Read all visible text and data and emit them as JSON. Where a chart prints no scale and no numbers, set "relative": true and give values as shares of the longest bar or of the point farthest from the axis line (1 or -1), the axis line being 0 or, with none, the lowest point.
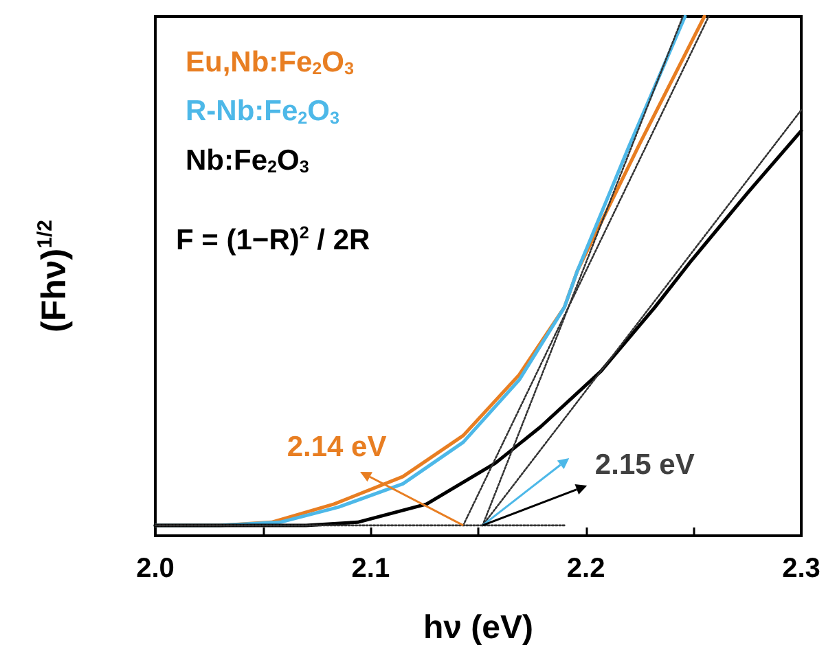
{
  "chart_data": {
    "type": "line",
    "relative": true,
    "xlabel": "hν (eV)",
    "ylabel": "(Fhν)$^{1/2}$",
    "xlim": [
      2.0,
      2.3
    ],
    "xticks": [
      {
        "value": 2.0,
        "label": "2.0"
      },
      {
        "value": 2.05,
        "label": null
      },
      {
        "value": 2.1,
        "label": "2.1"
      },
      {
        "value": 2.15,
        "label": null
      },
      {
        "value": 2.2,
        "label": "2.2"
      },
      {
        "value": 2.25,
        "label": null
      },
      {
        "value": 2.3,
        "label": "2.3"
      }
    ],
    "grid": false,
    "legend": "top left",
    "marker": "none",
    "line_style": "solid",
    "annotations": [
      "F = (1−R)$^{2}$ / 2R",
      {
        "text": "2.14 eV",
        "x": 2.143,
        "y": 0.02
      },
      {
        "text": "2.15 eV",
        "x": 2.152,
        "y": 0.02
      }
    ],
    "series": [
      {
        "name": "Eu,Nb:Fe$_{2}$O$_{3}$",
        "color": "#e87e22",
        "x": [
          2.0,
          2.03,
          2.054,
          2.083,
          2.115,
          2.143,
          2.169,
          2.19,
          2.196,
          2.225,
          2.255
        ],
        "values": [
          0.02,
          0.02,
          0.026,
          0.061,
          0.114,
          0.193,
          0.31,
          0.44,
          0.51,
          0.755,
          1
        ]
      },
      {
        "name": "R-Nb:Fe$_{2}$O$_{3}$",
        "color": "#4db8e8",
        "x": [
          2.0,
          2.03,
          2.058,
          2.085,
          2.115,
          2.143,
          2.169,
          2.19,
          2.196,
          2.22,
          2.246
        ],
        "values": [
          0.02,
          0.02,
          0.026,
          0.055,
          0.1,
          0.18,
          0.3,
          0.44,
          0.51,
          0.75,
          1
        ]
      },
      {
        "name": "Nb:Fe$_{2}$O$_{3}$",
        "color": "#000000",
        "x": [
          2.0,
          2.07,
          2.094,
          2.126,
          2.158,
          2.179,
          2.207,
          2.232,
          2.249,
          2.275,
          2.3
        ],
        "values": [
          0.02,
          0.02,
          0.026,
          0.061,
          0.14,
          0.21,
          0.317,
          0.44,
          0.53,
          0.66,
          0.78
        ]
      },
      {
        "type": "line",
        "color": "#333333",
        "line_style": "dotted",
        "x": [
          2.0,
          2.19
        ],
        "values": [
          0.02,
          0.02
        ]
      },
      {
        "type": "line",
        "color": "#333333",
        "line_style": "dotted",
        "x": [
          2.143,
          2.257
        ],
        "values": [
          0.02,
          1
        ]
      },
      {
        "type": "line",
        "color": "#333333",
        "line_style": "dotted",
        "x": [
          2.152,
          2.245
        ],
        "values": [
          0.02,
          1
        ]
      },
      {
        "type": "line",
        "color": "#333333",
        "line_style": "dotted",
        "x": [
          2.152,
          2.3
        ],
        "values": [
          0.02,
          0.82
        ]
      }
    ]
  }
}
